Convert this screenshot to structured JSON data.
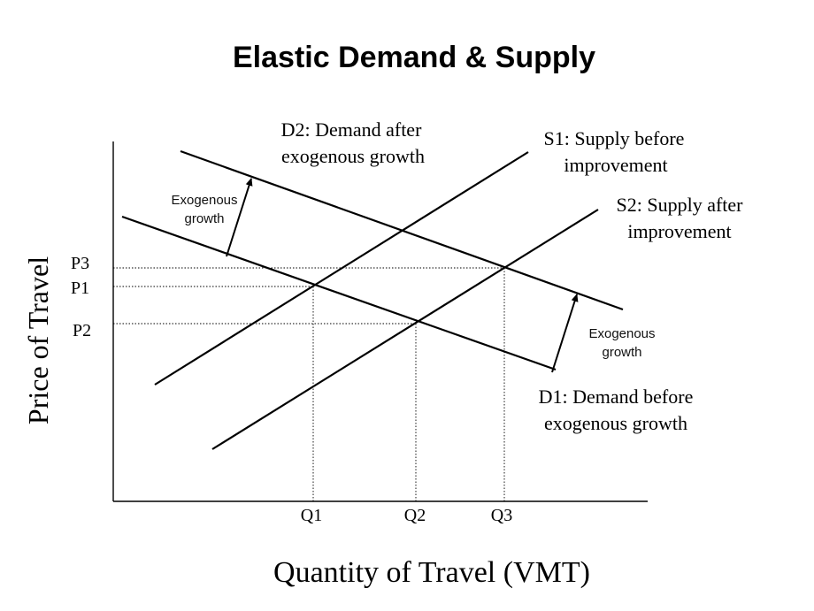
{
  "title": "Elastic Demand & Supply",
  "axes": {
    "y_label": "Price of Travel",
    "x_label": "Quantity of Travel (VMT)"
  },
  "price_levels": [
    "P3",
    "P1",
    "P2"
  ],
  "quantity_levels": [
    "Q1",
    "Q2",
    "Q3"
  ],
  "curves": {
    "d2": {
      "line1": "D2: Demand after",
      "line2": "exogenous growth"
    },
    "s1": {
      "line1": "S1: Supply before",
      "line2": "improvement"
    },
    "s2": {
      "line1": "S2: Supply after",
      "line2": "improvement"
    },
    "d1": {
      "line1": "D1: Demand before",
      "line2": "exogenous growth"
    }
  },
  "annotations": {
    "growth_left": {
      "line1": "Exogenous",
      "line2": "growth"
    },
    "growth_right": {
      "line1": "Exogenous",
      "line2": "growth"
    }
  }
}
